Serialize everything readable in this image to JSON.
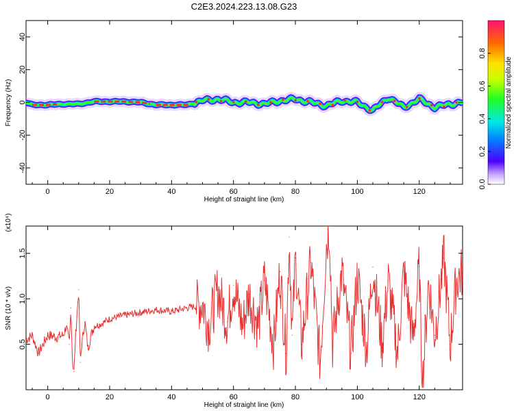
{
  "title": "C2E3.2024.223.13.08.G23",
  "chart_data": [
    {
      "type": "heatmap",
      "title": "C2E3.2024.223.13.08.G23",
      "xlabel": "Height of straight line (km)",
      "ylabel": "Frequency (Hz)",
      "xlim": [
        -7,
        134
      ],
      "ylim": [
        -50,
        50
      ],
      "x_ticks": [
        0,
        20,
        40,
        60,
        80,
        100,
        120
      ],
      "y_ticks": [
        40,
        20,
        0,
        -20,
        -40
      ],
      "colorbar": {
        "label": "Normalized spectral amplitude",
        "range": [
          0.0,
          1.0
        ],
        "ticks": [
          0.0,
          0.2,
          0.4,
          0.6,
          0.8
        ]
      },
      "ridge": {
        "x": [
          -7,
          -5,
          0,
          5,
          10,
          15,
          20,
          25,
          30,
          35,
          40,
          45,
          48,
          50,
          55,
          60,
          65,
          70,
          75,
          80,
          85,
          90,
          95,
          100,
          105,
          110,
          115,
          120,
          125,
          130,
          134
        ],
        "frequency": [
          0,
          -1.5,
          -1.5,
          -1,
          -1,
          0.5,
          0.5,
          0.5,
          0,
          -1.5,
          -1.5,
          -1.5,
          0,
          1,
          2,
          0,
          0,
          -1,
          1,
          2,
          0,
          -2,
          1,
          0,
          -5,
          3,
          -3,
          2,
          -3,
          -1,
          0
        ]
      },
      "grid": false,
      "colors": {
        "ridge_peak": "#ff2a2a",
        "ridge_mid": "#33ff33",
        "halo": "#4b00ff",
        "spread": "#c9a8ff"
      }
    },
    {
      "type": "line",
      "xlabel": "Height of straight line (km)",
      "ylabel": "SNR (10 * v/v)",
      "y_multiplier": "(x10⁴)",
      "xlim": [
        -7,
        134
      ],
      "ylim": [
        0.0,
        1.8
      ],
      "x_ticks": [
        0,
        20,
        40,
        60,
        80,
        100,
        120
      ],
      "y_ticks": [
        0.5,
        1.0,
        1.5
      ],
      "y_tick_labels": [
        "0.5",
        "1.0",
        "1.5"
      ],
      "grid": false,
      "series": [
        {
          "color": "#e83030",
          "x": [
            -7,
            -5,
            -3,
            0,
            3,
            5,
            6,
            7,
            7.5,
            8,
            8.5,
            9,
            10,
            10.5,
            11,
            12,
            13,
            14,
            15,
            17,
            20,
            25,
            30,
            35,
            40,
            45,
            48,
            50,
            52,
            55,
            58,
            60,
            63,
            65,
            68,
            70,
            73,
            75,
            77,
            78,
            79,
            80,
            82,
            85,
            88,
            90,
            91,
            92,
            95,
            98,
            100,
            103,
            105,
            108,
            110,
            113,
            115,
            118,
            120,
            121,
            123,
            125,
            128,
            130,
            132,
            134
          ],
          "values": [
            0.55,
            0.6,
            0.4,
            0.6,
            0.58,
            0.6,
            0.7,
            0.5,
            0.9,
            0.3,
            0.2,
            0.6,
            1.1,
            0.3,
            0.5,
            0.75,
            0.45,
            0.6,
            0.7,
            0.72,
            0.78,
            0.82,
            0.85,
            0.88,
            0.86,
            0.9,
            0.92,
            0.95,
            0.7,
            1.1,
            0.75,
            1.15,
            0.7,
            1.05,
            0.7,
            1.2,
            0.5,
            1.3,
            0.4,
            1.68,
            0.6,
            1.45,
            0.5,
            1.4,
            0.3,
            1.6,
            1.8,
            0.5,
            1.3,
            0.4,
            1.25,
            0.45,
            1.35,
            0.5,
            1.2,
            0.4,
            1.3,
            0.55,
            1.35,
            0.05,
            1.2,
            0.6,
            1.45,
            0.5,
            1.2,
            1.3
          ]
        }
      ]
    }
  ]
}
